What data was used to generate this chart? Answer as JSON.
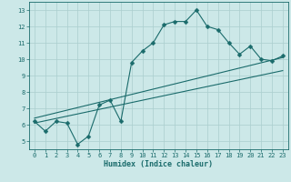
{
  "xlabel": "Humidex (Indice chaleur)",
  "bg_color": "#cce8e8",
  "line_color": "#1a6b6b",
  "grid_color": "#aacece",
  "xlim": [
    -0.5,
    23.5
  ],
  "ylim": [
    4.5,
    13.5
  ],
  "xticks": [
    0,
    1,
    2,
    3,
    4,
    5,
    6,
    7,
    8,
    9,
    10,
    11,
    12,
    13,
    14,
    15,
    16,
    17,
    18,
    19,
    20,
    21,
    22,
    23
  ],
  "yticks": [
    5,
    6,
    7,
    8,
    9,
    10,
    11,
    12,
    13
  ],
  "main_x": [
    0,
    1,
    2,
    3,
    4,
    5,
    6,
    7,
    8,
    9,
    10,
    11,
    12,
    13,
    14,
    15,
    16,
    17,
    18,
    19,
    20,
    21,
    22,
    23
  ],
  "main_y": [
    6.2,
    5.6,
    6.2,
    6.1,
    4.8,
    5.3,
    7.2,
    7.5,
    6.2,
    9.8,
    10.5,
    11.0,
    12.1,
    12.3,
    12.3,
    13.0,
    12.0,
    11.8,
    11.0,
    10.3,
    10.8,
    10.0,
    9.9,
    10.2
  ],
  "line1_x": [
    0,
    23
  ],
  "line1_y": [
    6.1,
    9.3
  ],
  "line2_x": [
    0,
    23
  ],
  "line2_y": [
    6.4,
    10.1
  ],
  "marker_size": 2.5
}
